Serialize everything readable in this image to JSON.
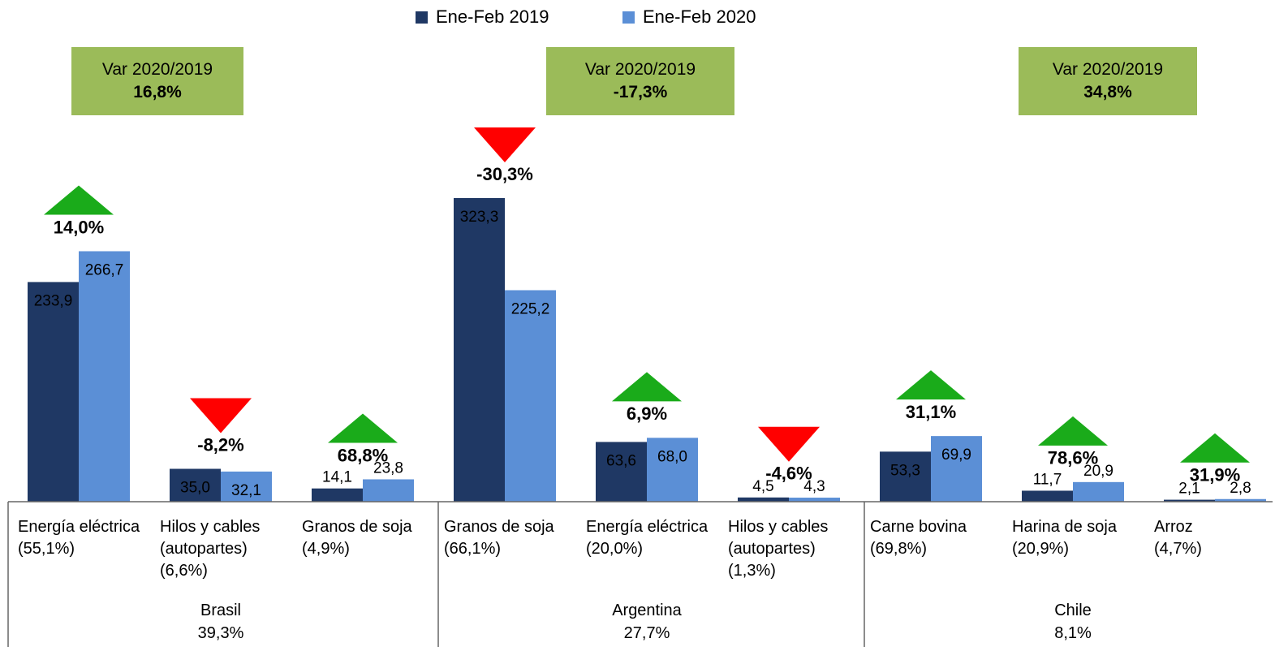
{
  "chart_data": {
    "type": "bar",
    "var_title": "Var 2020/2019",
    "groups": [
      {
        "name": "Brasil",
        "share": "39,3%",
        "var": "16,8%",
        "count": 3
      },
      {
        "name": "Argentina",
        "share": "27,7%",
        "var": "-17,3%",
        "count": 3
      },
      {
        "name": "Chile",
        "share": "8,1%",
        "var": "34,8%",
        "count": 3
      }
    ],
    "categories": [
      "Energía eléctrica",
      "Hilos y cables (autopartes)",
      "Granos de soja",
      "Granos de soja",
      "Energía eléctrica",
      "Hilos y cables (autopartes)",
      "Carne bovina",
      "Harina de soja",
      "Arroz"
    ],
    "category_shares": [
      "(55,1%)",
      "(6,6%)",
      "(4,9%)",
      "(66,1%)",
      "(20,0%)",
      "(1,3%)",
      "(69,8%)",
      "(20,9%)",
      "(4,7%)"
    ],
    "series": [
      {
        "name": "Ene-Feb 2019",
        "color": "#1f3864",
        "values": [
          233.9,
          35.0,
          14.1,
          323.3,
          63.6,
          4.5,
          53.3,
          11.7,
          2.1
        ],
        "value_labels": [
          "233,9",
          "35,0",
          "14,1",
          "323,3",
          "63,6",
          "4,5",
          "53,3",
          "11,7",
          "2,1"
        ]
      },
      {
        "name": "Ene-Feb 2020",
        "color": "#5b8fd6",
        "values": [
          266.7,
          32.1,
          23.8,
          225.2,
          68.0,
          4.3,
          69.9,
          20.9,
          2.8
        ],
        "value_labels": [
          "266,7",
          "32,1",
          "23,8",
          "225,2",
          "68,0",
          "4,3",
          "69,9",
          "20,9",
          "2,8"
        ]
      }
    ],
    "changes": [
      {
        "value": 14.0,
        "label": "14,0%"
      },
      {
        "value": -8.2,
        "label": "-8,2%"
      },
      {
        "value": 68.8,
        "label": "68,8%"
      },
      {
        "value": -30.3,
        "label": "-30,3%"
      },
      {
        "value": 6.9,
        "label": "6,9%"
      },
      {
        "value": -4.6,
        "label": "-4,6%"
      },
      {
        "value": 31.1,
        "label": "31,1%"
      },
      {
        "value": 78.6,
        "label": "78,6%"
      },
      {
        "value": 31.9,
        "label": "31,9%"
      }
    ],
    "up_color": "#1aab1a",
    "down_color": "#ff0000"
  }
}
